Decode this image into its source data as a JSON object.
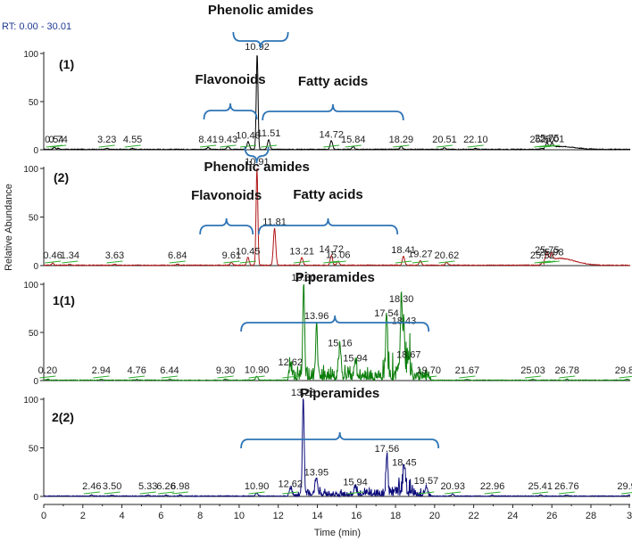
{
  "rt_range": "RT: 0.00 - 30.01",
  "xlabel": "Time (min)",
  "ylabel": "Relative Abundance",
  "xticks": [
    "0",
    "2",
    "4",
    "6",
    "8",
    "10",
    "12",
    "14",
    "16",
    "18",
    "20",
    "22",
    "24",
    "26",
    "28",
    "3"
  ],
  "yticks": [
    "0",
    "50",
    "100"
  ],
  "colors": {
    "trace1": "#000000",
    "trace2": "#b01515",
    "trace3": "#0a7d0a",
    "trace4": "#0b0b7a",
    "bracket": "#2e74b5",
    "baseline_markers": "#2fae2f",
    "rt_label": "#1f3a93"
  },
  "chart_data": [
    {
      "type": "line",
      "panel_label": "(1)",
      "xlim": [
        0,
        30.01
      ],
      "ylim": [
        0,
        100
      ],
      "peaks": [
        {
          "rt": 0.54,
          "ab": 2
        },
        {
          "rt": 0.74,
          "ab": 1
        },
        {
          "rt": 3.23,
          "ab": 1
        },
        {
          "rt": 4.55,
          "ab": 1
        },
        {
          "rt": 8.41,
          "ab": 2
        },
        {
          "rt": 9.43,
          "ab": 3
        },
        {
          "rt": 10.46,
          "ab": 8
        },
        {
          "rt": 10.92,
          "ab": 100
        },
        {
          "rt": 11.51,
          "ab": 10
        },
        {
          "rt": 14.72,
          "ab": 9
        },
        {
          "rt": 15.84,
          "ab": 3
        },
        {
          "rt": 18.29,
          "ab": 3
        },
        {
          "rt": 20.51,
          "ab": 2
        },
        {
          "rt": 22.1,
          "ab": 1
        },
        {
          "rt": 25.5,
          "ab": 1
        },
        {
          "rt": 25.75,
          "ab": 5
        },
        {
          "rt": 26.01,
          "ab": 4
        }
      ],
      "annotations": [
        {
          "text": "Phenolic amides",
          "from": 9.7,
          "to": 12.5
        },
        {
          "text": "Flavonoids",
          "from": 8.2,
          "to": 10.9
        },
        {
          "text": "Fatty acids",
          "from": 11.2,
          "to": 18.4
        }
      ]
    },
    {
      "type": "line",
      "panel_label": "(2)",
      "xlim": [
        0,
        30.01
      ],
      "ylim": [
        0,
        100
      ],
      "peaks": [
        {
          "rt": 0.46,
          "ab": 2
        },
        {
          "rt": 1.34,
          "ab": 1
        },
        {
          "rt": 3.63,
          "ab": 1
        },
        {
          "rt": 6.84,
          "ab": 1
        },
        {
          "rt": 9.61,
          "ab": 3
        },
        {
          "rt": 10.45,
          "ab": 8
        },
        {
          "rt": 10.91,
          "ab": 100
        },
        {
          "rt": 11.81,
          "ab": 38
        },
        {
          "rt": 13.21,
          "ab": 8
        },
        {
          "rt": 14.72,
          "ab": 10
        },
        {
          "rt": 15.06,
          "ab": 4
        },
        {
          "rt": 18.41,
          "ab": 9
        },
        {
          "rt": 19.27,
          "ab": 5
        },
        {
          "rt": 20.62,
          "ab": 3
        },
        {
          "rt": 25.52,
          "ab": 3
        },
        {
          "rt": 25.75,
          "ab": 9
        },
        {
          "rt": 25.98,
          "ab": 7
        }
      ],
      "annotations": [
        {
          "text": "Phenolic amides",
          "from": 10.3,
          "to": 11.5
        },
        {
          "text": "Flavonoids",
          "from": 8.0,
          "to": 10.7
        },
        {
          "text": "Fatty acids",
          "from": 11.0,
          "to": 18.1
        }
      ]
    },
    {
      "type": "line",
      "panel_label": "1(1)",
      "xlim": [
        0,
        30.01
      ],
      "ylim": [
        0,
        100
      ],
      "peaks": [
        {
          "rt": 0.2,
          "ab": 1
        },
        {
          "rt": 2.94,
          "ab": 1
        },
        {
          "rt": 4.76,
          "ab": 1
        },
        {
          "rt": 6.44,
          "ab": 1
        },
        {
          "rt": 9.3,
          "ab": 1
        },
        {
          "rt": 10.9,
          "ab": 4
        },
        {
          "rt": 12.62,
          "ab": 12
        },
        {
          "rt": 13.3,
          "ab": 100
        },
        {
          "rt": 13.96,
          "ab": 60
        },
        {
          "rt": 15.16,
          "ab": 32
        },
        {
          "rt": 15.94,
          "ab": 16
        },
        {
          "rt": 17.54,
          "ab": 63
        },
        {
          "rt": 18.3,
          "ab": 78
        },
        {
          "rt": 18.43,
          "ab": 55
        },
        {
          "rt": 18.67,
          "ab": 20
        },
        {
          "rt": 19.7,
          "ab": 2
        },
        {
          "rt": 21.67,
          "ab": 1
        },
        {
          "rt": 25.03,
          "ab": 1
        },
        {
          "rt": 26.78,
          "ab": 1
        },
        {
          "rt": 29.85,
          "ab": 1
        }
      ],
      "annotations": [
        {
          "text": "Piperamides",
          "from": 10.1,
          "to": 19.7
        }
      ]
    },
    {
      "type": "line",
      "panel_label": "2(2)",
      "xlim": [
        0,
        30.01
      ],
      "ylim": [
        0,
        100
      ],
      "peaks": [
        {
          "rt": 2.46,
          "ab": 1
        },
        {
          "rt": 3.5,
          "ab": 1
        },
        {
          "rt": 5.33,
          "ab": 1
        },
        {
          "rt": 6.26,
          "ab": 1
        },
        {
          "rt": 6.98,
          "ab": 1
        },
        {
          "rt": 10.9,
          "ab": 3
        },
        {
          "rt": 12.62,
          "ab": 6
        },
        {
          "rt": 13.28,
          "ab": 100
        },
        {
          "rt": 13.95,
          "ab": 18
        },
        {
          "rt": 15.94,
          "ab": 8
        },
        {
          "rt": 17.56,
          "ab": 42
        },
        {
          "rt": 18.45,
          "ab": 28
        },
        {
          "rt": 19.57,
          "ab": 9
        },
        {
          "rt": 20.93,
          "ab": 2
        },
        {
          "rt": 22.96,
          "ab": 1
        },
        {
          "rt": 25.41,
          "ab": 1
        },
        {
          "rt": 26.76,
          "ab": 1
        },
        {
          "rt": 29.97,
          "ab": 1
        }
      ],
      "annotations": [
        {
          "text": "Piperamides",
          "from": 10.1,
          "to": 20.2
        }
      ]
    }
  ]
}
